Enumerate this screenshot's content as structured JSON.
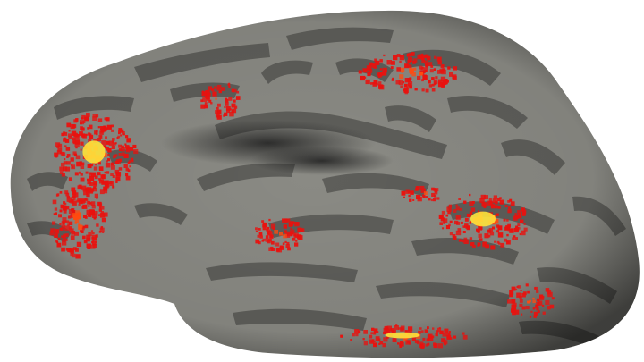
{
  "scene": {
    "subject": "inflated-cortical-surface",
    "hemisphere_view": "lateral",
    "background_color": "#ffffff"
  },
  "colors": {
    "gyri": "#8a8a84",
    "sulci": "#5b5b58",
    "shadow": "#2f2f2f",
    "activation_low": "#e8120f",
    "activation_mid": "#ff4a10",
    "activation_high": "#ffe23a"
  },
  "activation_clusters": [
    {
      "name": "frontal-pole-cluster",
      "peak": "high"
    },
    {
      "name": "inferior-frontal-cluster",
      "peak": "mid"
    },
    {
      "name": "middle-frontal-cluster",
      "peak": "low"
    },
    {
      "name": "superior-parietal-cluster",
      "peak": "low"
    },
    {
      "name": "superior-temporal-cluster",
      "peak": "low"
    },
    {
      "name": "temporo-occipital-cluster",
      "peak": "high"
    },
    {
      "name": "inferior-temporal-cluster",
      "peak": "low"
    },
    {
      "name": "occipital-pole-cluster",
      "peak": "low"
    }
  ]
}
